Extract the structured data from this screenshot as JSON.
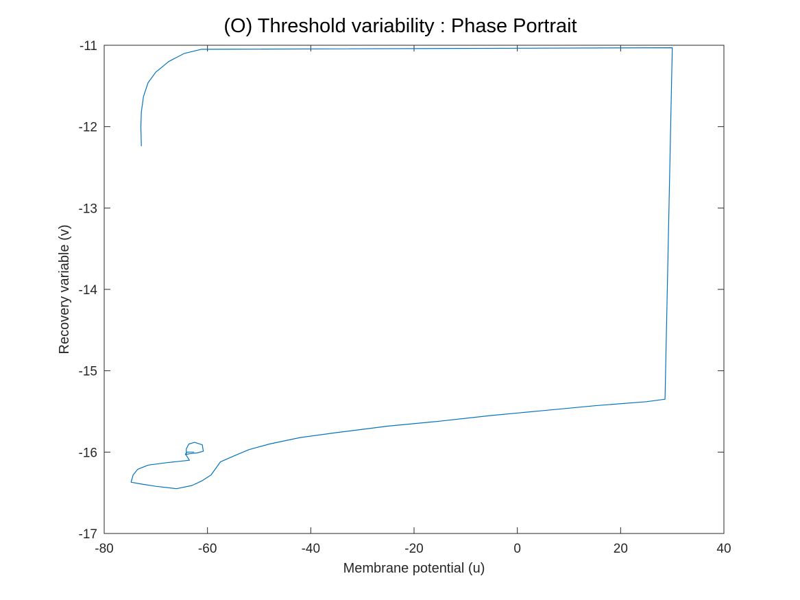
{
  "chart_data": {
    "type": "line",
    "title": "(O) Threshold variability : Phase Portrait",
    "xlabel": "Membrane potential (u)",
    "ylabel": "Recovery variable (v)",
    "xlim": [
      -80,
      40
    ],
    "ylim": [
      -17,
      -11
    ],
    "x_ticks": [
      -80,
      -60,
      -40,
      -20,
      0,
      20,
      40
    ],
    "y_ticks": [
      -17,
      -16,
      -15,
      -14,
      -13,
      -12,
      -11
    ],
    "x_tick_labels": [
      "-80",
      "-60",
      "-40",
      "-20",
      "0",
      "20",
      "40"
    ],
    "y_tick_labels": [
      "-17",
      "-16",
      "-15",
      "-14",
      "-13",
      "-12",
      "-11"
    ],
    "grid": false,
    "box": true,
    "series": [
      {
        "color": "#0072BD",
        "x": [
          -72.8,
          -72.9,
          -72.8,
          -72.4,
          -71.5,
          -70,
          -67.5,
          -64.5,
          -61.2,
          30.0,
          28.6,
          25,
          15,
          5,
          -5,
          -15,
          -25,
          -35,
          -42,
          -48,
          -52,
          -55,
          -57.5,
          -59.3,
          -61,
          -63,
          -66,
          -70,
          -73,
          -74.8,
          -74.4,
          -73.5,
          -71.5,
          -68,
          -63.5,
          -64.1,
          -64.1,
          -63.6,
          -62.5,
          -61.0,
          -60.8,
          -62.0,
          -63.5,
          -64.3,
          -64.0,
          -62.6
        ],
        "y": [
          -12.24,
          -12.0,
          -11.82,
          -11.63,
          -11.46,
          -11.33,
          -11.2,
          -11.1,
          -11.05,
          -11.03,
          -15.35,
          -15.38,
          -15.43,
          -15.49,
          -15.55,
          -15.62,
          -15.68,
          -15.76,
          -15.82,
          -15.9,
          -15.97,
          -16.05,
          -16.12,
          -16.28,
          -16.35,
          -16.41,
          -16.45,
          -16.42,
          -16.39,
          -16.37,
          -16.28,
          -16.21,
          -16.16,
          -16.13,
          -16.1,
          -16.04,
          -15.96,
          -15.9,
          -15.88,
          -15.91,
          -15.99,
          -16.01,
          -16.02,
          -16.03,
          -16.0,
          -16.0
        ]
      }
    ]
  }
}
